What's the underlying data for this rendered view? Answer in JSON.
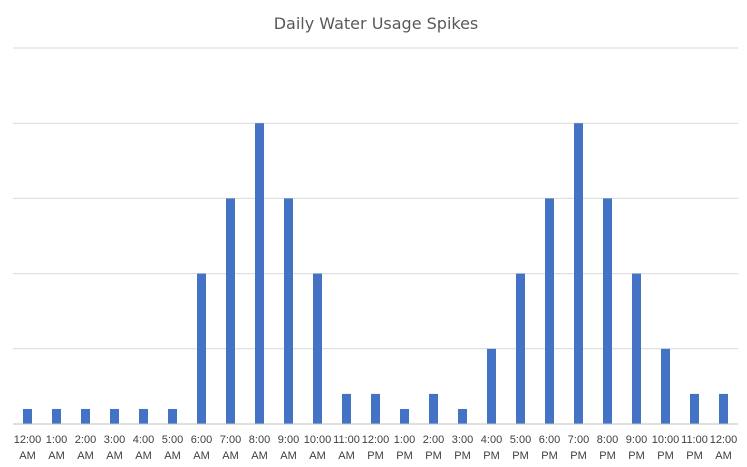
{
  "chart_data": {
    "type": "bar",
    "title": "Daily Water Usage Spikes",
    "xlabel": "",
    "ylabel": "",
    "categories": [
      [
        "12:00",
        "AM"
      ],
      [
        "1:00",
        "AM"
      ],
      [
        "2:00",
        "AM"
      ],
      [
        "3:00",
        "AM"
      ],
      [
        "4:00",
        "AM"
      ],
      [
        "5:00",
        "AM"
      ],
      [
        "6:00",
        "AM"
      ],
      [
        "7:00",
        "AM"
      ],
      [
        "8:00",
        "AM"
      ],
      [
        "9:00",
        "AM"
      ],
      [
        "10:00",
        "AM"
      ],
      [
        "11:00",
        "AM"
      ],
      [
        "12:00",
        "PM"
      ],
      [
        "1:00",
        "PM"
      ],
      [
        "2:00",
        "PM"
      ],
      [
        "3:00",
        "PM"
      ],
      [
        "4:00",
        "PM"
      ],
      [
        "5:00",
        "PM"
      ],
      [
        "6:00",
        "PM"
      ],
      [
        "7:00",
        "PM"
      ],
      [
        "8:00",
        "PM"
      ],
      [
        "9:00",
        "PM"
      ],
      [
        "10:00",
        "PM"
      ],
      [
        "11:00",
        "PM"
      ],
      [
        "12:00",
        "AM"
      ]
    ],
    "values": [
      0.2,
      0.2,
      0.2,
      0.2,
      0.2,
      0.2,
      2,
      3,
      4,
      3,
      2,
      0.4,
      0.4,
      0.2,
      0.4,
      0.2,
      1,
      2,
      3,
      4,
      3,
      2,
      1,
      0.4,
      0.4
    ],
    "ylim": [
      0,
      5
    ],
    "y_ticks_shown": false,
    "grid": true,
    "legend": "none",
    "bar_color": "#4472c4"
  }
}
